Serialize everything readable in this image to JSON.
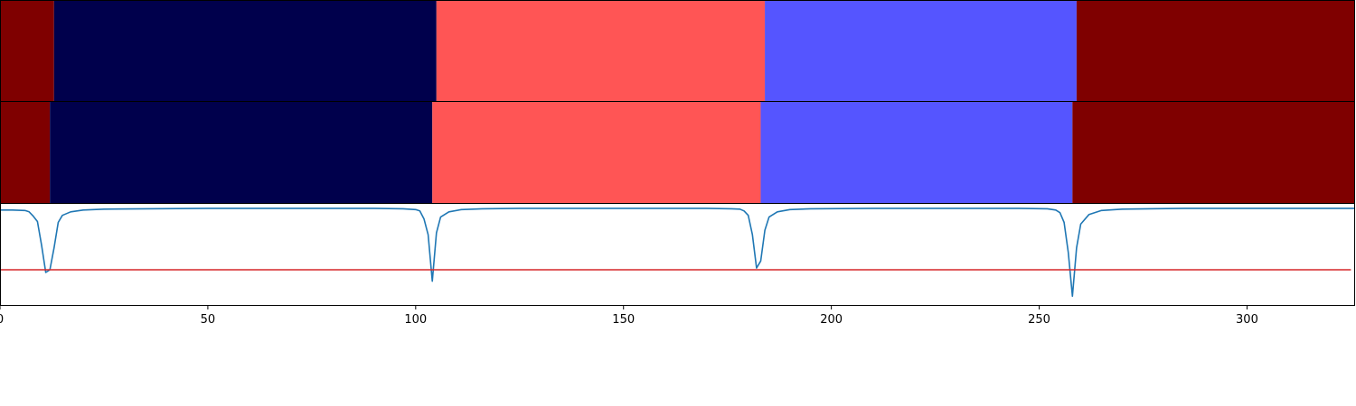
{
  "chart_data": [
    {
      "type": "segments",
      "panel": "true-labels",
      "xlim": [
        0,
        326
      ],
      "segments": [
        {
          "start": 0,
          "end": 13,
          "color": "#7f0000"
        },
        {
          "start": 13,
          "end": 105,
          "color": "#00004c"
        },
        {
          "start": 105,
          "end": 184,
          "color": "#ff5555"
        },
        {
          "start": 184,
          "end": 259,
          "color": "#5555ff"
        },
        {
          "start": 259,
          "end": 326,
          "color": "#7f0000"
        }
      ]
    },
    {
      "type": "segments",
      "panel": "predicted-labels",
      "xlim": [
        0,
        326
      ],
      "segments": [
        {
          "start": 0,
          "end": 12,
          "color": "#7f0000"
        },
        {
          "start": 12,
          "end": 104,
          "color": "#00004c"
        },
        {
          "start": 104,
          "end": 183,
          "color": "#ff5555"
        },
        {
          "start": 183,
          "end": 258,
          "color": "#5555ff"
        },
        {
          "start": 258,
          "end": 326,
          "color": "#7f0000"
        }
      ]
    },
    {
      "type": "line",
      "panel": "score",
      "xlim": [
        0,
        326
      ],
      "ylim": [
        -1.1,
        0.05
      ],
      "xticks": [
        0,
        50,
        100,
        150,
        200,
        250,
        300
      ],
      "grid": false,
      "series": [
        {
          "color": "#1f77b4",
          "x": [
            0,
            3,
            6,
            7,
            8,
            9,
            10,
            11,
            12,
            13,
            14,
            15,
            17,
            20,
            25,
            35,
            50,
            90,
            97,
            100,
            101,
            102,
            103,
            104,
            105,
            106,
            108,
            111,
            116,
            125,
            150,
            170,
            176,
            178,
            179,
            180,
            181,
            182,
            183,
            184,
            185,
            187,
            190,
            195,
            210,
            230,
            245,
            252,
            254,
            255,
            256,
            257,
            258,
            259,
            260,
            262,
            265,
            270,
            285,
            326
          ],
          "y": [
            -0.02,
            -0.02,
            -0.025,
            -0.04,
            -0.09,
            -0.15,
            -0.42,
            -0.73,
            -0.7,
            -0.45,
            -0.16,
            -0.08,
            -0.04,
            -0.02,
            -0.01,
            -0.005,
            0,
            0,
            -0.005,
            -0.015,
            -0.03,
            -0.12,
            -0.3,
            -0.83,
            -0.28,
            -0.1,
            -0.04,
            -0.015,
            -0.005,
            0,
            0,
            0,
            -0.005,
            -0.01,
            -0.03,
            -0.08,
            -0.3,
            -0.68,
            -0.6,
            -0.25,
            -0.1,
            -0.04,
            -0.015,
            -0.005,
            0,
            0,
            0,
            -0.005,
            -0.02,
            -0.05,
            -0.16,
            -0.5,
            -1.0,
            -0.45,
            -0.18,
            -0.07,
            -0.025,
            -0.01,
            0,
            0
          ]
        },
        {
          "color": "#d62728",
          "x": [
            0,
            325
          ],
          "y": [
            -0.7,
            -0.7
          ]
        }
      ]
    }
  ]
}
